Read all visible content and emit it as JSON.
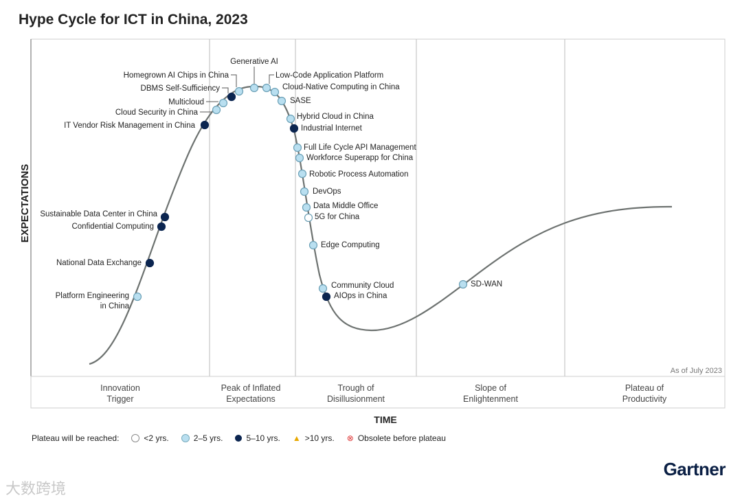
{
  "chart_data": {
    "type": "hype-cycle",
    "title": "Hype Cycle for ICT in China, 2023",
    "ylabel": "EXPECTATIONS",
    "xlabel": "TIME",
    "note": "As of July 2023",
    "phases": [
      [
        "Innovation",
        "Trigger"
      ],
      [
        "Peak of Inflated",
        "Expectations"
      ],
      [
        "Trough of",
        "Disillusionment"
      ],
      [
        "Slope of",
        "Enlightenment"
      ],
      [
        "Plateau of",
        "Productivity"
      ]
    ],
    "status_colors": {
      "lt2": "#ffffff",
      "2to5": "#b9dff0",
      "5to10": "#0b2550"
    },
    "items": [
      {
        "name": "Generative AI",
        "status": "2to5",
        "phase": 1
      },
      {
        "name": "Homegrown AI Chips in China",
        "status": "2to5",
        "phase": 1
      },
      {
        "name": "DBMS Self-Sufficiency",
        "status": "5to10",
        "phase": 1
      },
      {
        "name": "Multicloud",
        "status": "2to5",
        "phase": 1
      },
      {
        "name": "Cloud Security in China",
        "status": "2to5",
        "phase": 1
      },
      {
        "name": "IT Vendor Risk Management in China",
        "status": "5to10",
        "phase": 0
      },
      {
        "name": "Low-Code Application Platform",
        "status": "2to5",
        "phase": 1
      },
      {
        "name": "Cloud-Native Computing in China",
        "status": "2to5",
        "phase": 1
      },
      {
        "name": "SASE",
        "status": "2to5",
        "phase": 1
      },
      {
        "name": "Hybrid Cloud in China",
        "status": "2to5",
        "phase": 1
      },
      {
        "name": "Industrial Internet",
        "status": "5to10",
        "phase": 1
      },
      {
        "name": "Full Life Cycle API Management",
        "status": "2to5",
        "phase": 2
      },
      {
        "name": "Workforce Superapp for China",
        "status": "2to5",
        "phase": 2
      },
      {
        "name": "Robotic Process Automation",
        "status": "2to5",
        "phase": 2
      },
      {
        "name": "DevOps",
        "status": "2to5",
        "phase": 2
      },
      {
        "name": "Data Middle Office",
        "status": "2to5",
        "phase": 2
      },
      {
        "name": "5G for China",
        "status": "lt2",
        "phase": 2
      },
      {
        "name": "Edge Computing",
        "status": "2to5",
        "phase": 2
      },
      {
        "name": "Community Cloud",
        "status": "2to5",
        "phase": 2
      },
      {
        "name": "AIOps in China",
        "status": "5to10",
        "phase": 2
      },
      {
        "name": "SD-WAN",
        "status": "2to5",
        "phase": 3
      },
      {
        "name": "Sustainable Data Center in China",
        "status": "5to10",
        "phase": 0
      },
      {
        "name": "Confidential Computing",
        "status": "5to10",
        "phase": 0
      },
      {
        "name": "National Data Exchange",
        "status": "5to10",
        "phase": 0
      },
      {
        "name": "Platform Engineering in China",
        "status": "2to5",
        "phase": 0
      }
    ],
    "legend": {
      "prefix": "Plateau will be reached:",
      "entries": [
        "<2 yrs.",
        "2–5 yrs.",
        "5–10 yrs.",
        ">10 yrs.",
        "Obsolete before plateau"
      ]
    }
  },
  "brand": "Gartner",
  "watermark": "大数跨境"
}
